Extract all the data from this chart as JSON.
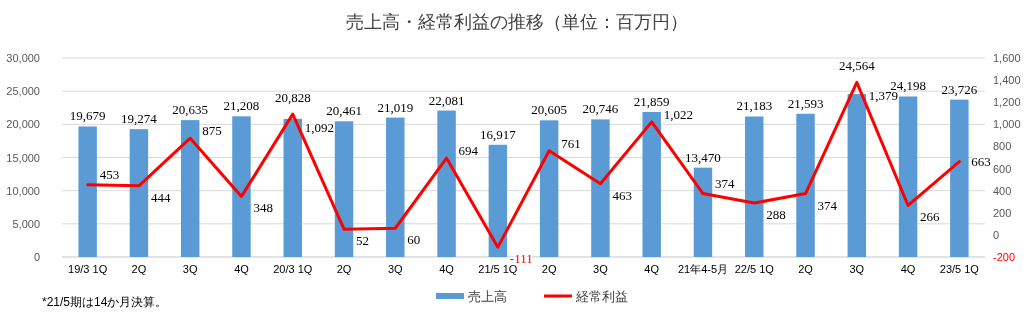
{
  "chart_data": {
    "type": "bar",
    "title": "売上高・経常利益の推移（単位：百万円）",
    "categories": [
      "19/3 1Q",
      "2Q",
      "3Q",
      "4Q",
      "20/3 1Q",
      "2Q",
      "3Q",
      "4Q",
      "21/5 1Q",
      "2Q",
      "3Q",
      "4Q",
      "21年4-5月",
      "22/5 1Q",
      "2Q",
      "3Q",
      "4Q",
      "23/5 1Q"
    ],
    "series": [
      {
        "name": "売上高",
        "color": "#5b9bd5",
        "values": [
          19679,
          19274,
          20635,
          21208,
          20828,
          20461,
          21019,
          22081,
          16917,
          20605,
          20746,
          21859,
          13470,
          21183,
          21593,
          24564,
          24198,
          23726
        ],
        "value_labels": [
          "19,679",
          "19,274",
          "20,635",
          "21,208",
          "20,828",
          "20,461",
          "21,019",
          "22,081",
          "16,917",
          "20,605",
          "20,746",
          "21,859",
          "13,470",
          "21,183",
          "21,593",
          "24,564",
          "24,198",
          "23,726"
        ]
      },
      {
        "name": "経常利益",
        "type": "line",
        "axis": "y2",
        "color": "#ff0000",
        "values": [
          453,
          444,
          875,
          348,
          1092,
          52,
          60,
          694,
          -111,
          761,
          463,
          1022,
          374,
          288,
          374,
          1379,
          266,
          663
        ],
        "value_labels": [
          "453",
          "444",
          "875",
          "348",
          "1,092",
          "52",
          "60",
          "694",
          "-111",
          "761",
          "463",
          "1,022",
          "374",
          "288",
          "374",
          "1,379",
          "266",
          "663"
        ]
      }
    ],
    "ylim": [
      0,
      30000
    ],
    "yticks": [
      {
        "value": 0,
        "label": "0"
      },
      {
        "value": 5000,
        "label": "5,000"
      },
      {
        "value": 10000,
        "label": "10,000"
      },
      {
        "value": 15000,
        "label": "15,000"
      },
      {
        "value": 20000,
        "label": "20,000"
      },
      {
        "value": 25000,
        "label": "25,000"
      },
      {
        "value": 30000,
        "label": "30,000"
      }
    ],
    "y2lim": [
      -200,
      1600
    ],
    "y2ticks": [
      -200,
      0,
      {
        "value": 200,
        "label": "200"
      },
      {
        "value": 400,
        "label": "400"
      },
      {
        "value": 600,
        "label": "600"
      },
      {
        "value": 800,
        "label": "800"
      },
      {
        "value": 1000,
        "label": "1,000"
      },
      {
        "value": 1200,
        "label": "1,200"
      },
      {
        "value": 1400,
        "label": "1,400"
      },
      {
        "value": 1600,
        "label": "1,600"
      }
    ],
    "grid": "y",
    "legend": "bottom",
    "marker": "none",
    "line_style": "solid",
    "annotations": [
      "*21/5期は14か月決算。"
    ]
  }
}
